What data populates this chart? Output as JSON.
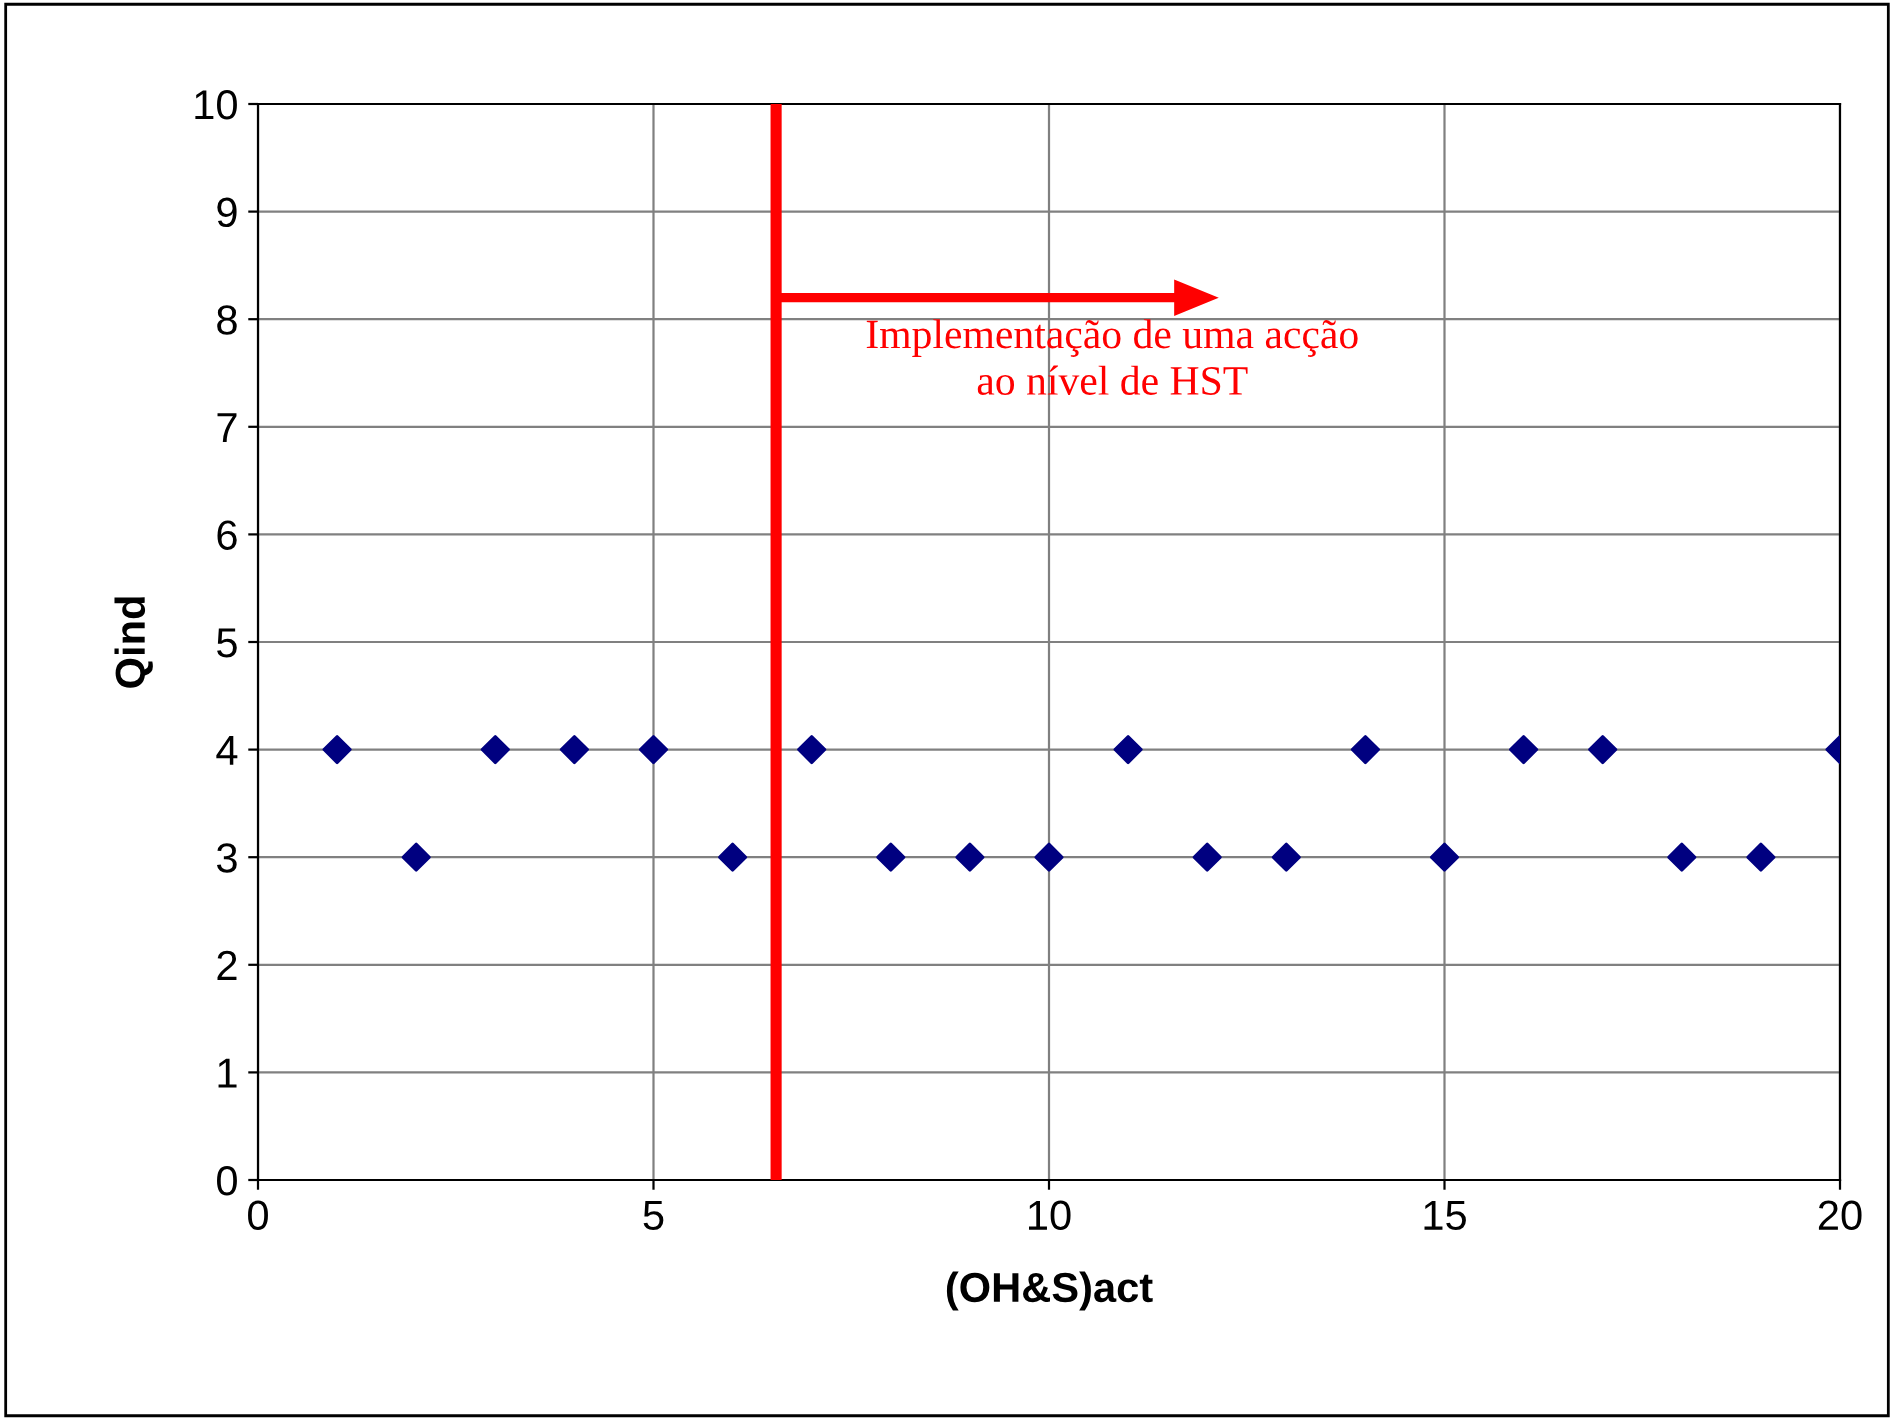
{
  "chart_data": {
    "type": "scatter",
    "xlabel": "(OH&S)act",
    "ylabel": "Qind",
    "x": [
      1,
      2,
      3,
      4,
      5,
      6,
      7,
      8,
      9,
      10,
      11,
      12,
      13,
      14,
      15,
      16,
      17,
      18,
      19,
      20
    ],
    "series": [
      {
        "color": "#000080",
        "values": [
          4,
          3,
          4,
          4,
          4,
          3,
          4,
          3,
          3,
          3,
          4,
          3,
          3,
          4,
          3,
          4,
          4,
          3,
          3,
          4
        ]
      }
    ],
    "xlim": [
      0,
      20
    ],
    "xticks": [
      0,
      5,
      10,
      15,
      20
    ],
    "ylim": [
      0,
      10
    ],
    "yticks": [
      0,
      1,
      2,
      3,
      4,
      5,
      6,
      7,
      8,
      9,
      10
    ],
    "grid": true,
    "marker": "diamond",
    "ref_lines": [
      {
        "axis": "x",
        "value": 6.55,
        "color": "#ff0000",
        "line_style": "solid"
      }
    ],
    "annotations": [
      {
        "text": "Implementação de uma acção\nao nível de HST",
        "x": 6.55,
        "y": 8.2
      }
    ]
  }
}
